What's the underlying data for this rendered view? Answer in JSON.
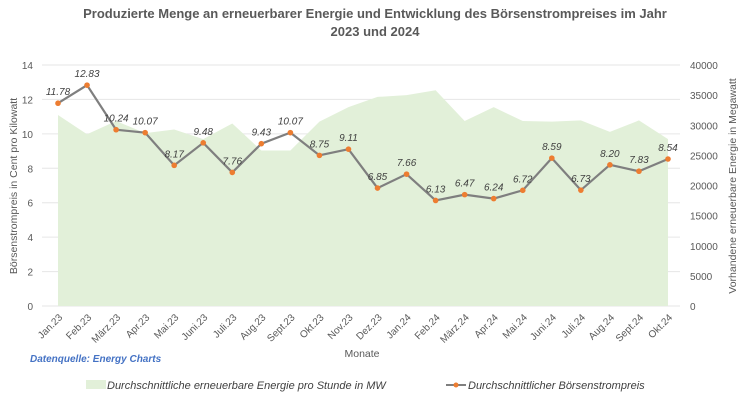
{
  "chart_data": {
    "type": "area+line",
    "title": "Produzierte Menge an erneuerbarer Energie und Entwicklung des Börsenstrompreises im Jahr 2023 und 2024",
    "title_lines": [
      "Produzierte Menge an erneuerbarer Energie und Entwicklung des Börsenstrompreises im Jahr",
      "2023 und 2024"
    ],
    "xlabel": "Monate",
    "ylabel_left": "Börsenstrompreis in Cent pro Kilowatt",
    "ylabel_right": "Vorhandene erneuerbare Energie in Megawatt",
    "ylim_left": [
      0,
      14
    ],
    "yticks_left": [
      0,
      2,
      4,
      6,
      8,
      10,
      12,
      14
    ],
    "ylim_right": [
      0,
      40000
    ],
    "yticks_right": [
      0,
      5000,
      10000,
      15000,
      20000,
      25000,
      30000,
      35000,
      40000
    ],
    "grid": true,
    "legend_position": "bottom",
    "source_note": "Datenquelle: Energy Charts",
    "categories": [
      "Jan.23",
      "Feb.23",
      "März.23",
      "Apr.23",
      "Mai.23",
      "Juni.23",
      "Juli.23",
      "Aug.23",
      "Sept.23",
      "Okt.23",
      "Nov.23",
      "Dez.23",
      "Jan.24",
      "Feb.24",
      "März.24",
      "Apr.24",
      "Mai.24",
      "Juni.24",
      "Juli.24",
      "Aug.24",
      "Sept.24",
      "Okt.24"
    ],
    "series": [
      {
        "name": "Durchschnittliche erneuerbare Energie pro Stunde in MW",
        "type": "area",
        "axis": "right",
        "color": "#e2f0d9",
        "values": [
          31700,
          28500,
          30700,
          28700,
          29300,
          27700,
          30300,
          25800,
          25800,
          30600,
          33000,
          34700,
          35000,
          35800,
          30700,
          33000,
          30700,
          30600,
          30800,
          28900,
          30800,
          27700
        ]
      },
      {
        "name": "Durchschnittlicher Börsenstrompreis",
        "type": "line",
        "axis": "left",
        "color": "#7f7f7f",
        "marker_color": "#ed7d31",
        "values": [
          11.78,
          12.83,
          10.24,
          10.07,
          8.17,
          9.48,
          7.76,
          9.43,
          10.07,
          8.75,
          9.11,
          6.85,
          7.66,
          6.13,
          6.47,
          6.24,
          6.72,
          8.59,
          6.73,
          8.2,
          7.83,
          8.54
        ],
        "labels": [
          "11.78",
          "12.83",
          "10.24",
          "10.07",
          "8.17",
          "9.48",
          "7.76",
          "9.43",
          "10.07",
          "8.75",
          "9.11",
          "6.85",
          "7.66",
          "6.13",
          "6.47",
          "6.24",
          "6.72",
          "8.59",
          "6.73",
          "8.20",
          "7.83",
          "8.54"
        ]
      }
    ]
  }
}
